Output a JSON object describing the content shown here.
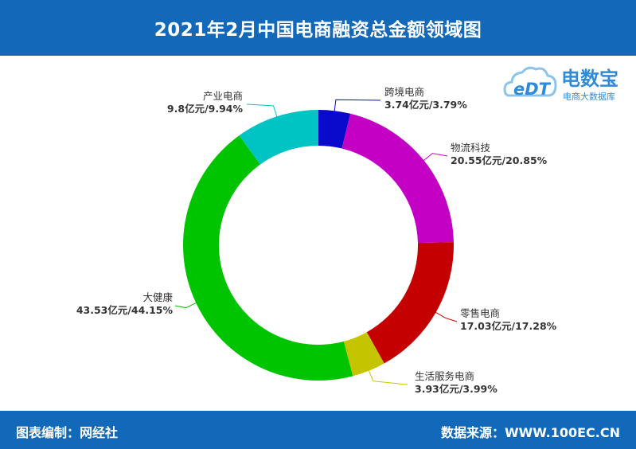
{
  "header": {
    "title": "2021年2月中国电商融资总金额领域图"
  },
  "footer": {
    "left": "图表编制：网经社",
    "right": "数据来源：WWW.100EC.CN"
  },
  "logo": {
    "mark": "eDT",
    "name": "电数宝",
    "subtitle": "电商大数据库",
    "icon": "cloud-logo-icon"
  },
  "colors": {
    "header_bg": "#1269b9",
    "footer_bg": "#1269b9"
  },
  "chart_data": {
    "type": "pie",
    "style": "donut",
    "title": "2021年2月中国电商融资总金额领域图",
    "unit": "亿元",
    "slices": [
      {
        "name": "跨境电商",
        "value": 3.74,
        "percent": 3.79,
        "label": "3.74亿元/3.79%",
        "color": "#0a0acc"
      },
      {
        "name": "物流科技",
        "value": 20.55,
        "percent": 20.85,
        "label": "20.55亿元/20.85%",
        "color": "#c400c4"
      },
      {
        "name": "零售电商",
        "value": 17.03,
        "percent": 17.28,
        "label": "17.03亿元/17.28%",
        "color": "#c40000"
      },
      {
        "name": "生活服务电商",
        "value": 3.93,
        "percent": 3.99,
        "label": "3.93亿元/3.99%",
        "color": "#c4c400"
      },
      {
        "name": "大健康",
        "value": 43.53,
        "percent": 44.15,
        "label": "43.53亿元/44.15%",
        "color": "#00c400"
      },
      {
        "name": "产业电商",
        "value": 9.8,
        "percent": 9.94,
        "label": "9.8亿元/9.94%",
        "color": "#00c4c4"
      }
    ]
  }
}
